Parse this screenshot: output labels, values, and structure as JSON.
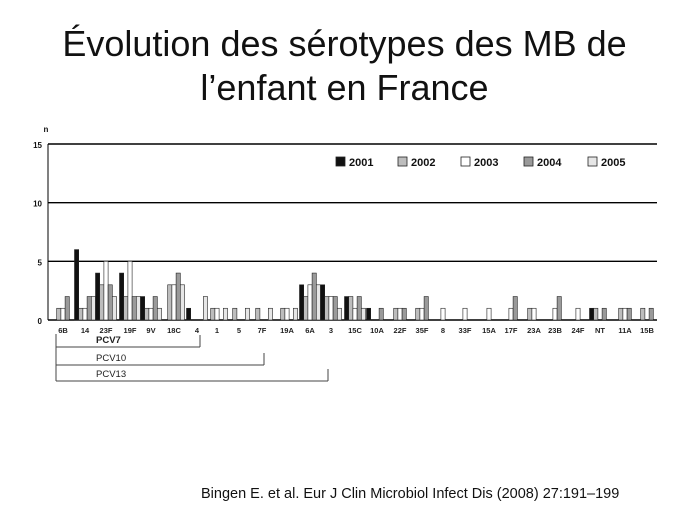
{
  "slide": {
    "title_line1": "Évolution des sérotypes des MB de",
    "title_line2": "l’enfant en France",
    "citation": "Bingen E. et al. Eur J Clin Microbiol Infect Dis (2008) 27:191–199"
  },
  "chart_data": {
    "type": "bar",
    "title": "",
    "ylabel": "n",
    "ylim": [
      0,
      15
    ],
    "yticks": [
      0,
      5,
      10,
      15
    ],
    "grid": "horizontal",
    "legend": "top-right",
    "series": [
      {
        "name": "2001",
        "color": "#111111",
        "values": [
          0,
          6,
          4,
          4,
          2,
          0,
          1,
          0,
          0,
          0,
          0,
          3,
          3,
          2,
          1,
          0,
          0,
          0,
          0,
          0,
          0,
          0,
          0,
          0,
          1,
          0,
          0
        ]
      },
      {
        "name": "2002",
        "color": "#bdbdbd",
        "values": [
          1,
          1,
          3,
          2,
          1,
          3,
          0,
          1,
          1,
          1,
          1,
          2,
          2,
          2,
          0,
          1,
          1,
          0,
          0,
          0,
          0,
          1,
          0,
          0,
          1,
          1,
          1
        ]
      },
      {
        "name": "2003",
        "color": "#ffffff",
        "values": [
          1,
          1,
          5,
          5,
          1,
          3,
          0,
          1,
          0,
          0,
          1,
          3,
          2,
          1,
          0,
          1,
          1,
          1,
          1,
          1,
          1,
          1,
          1,
          1,
          0,
          1,
          0
        ]
      },
      {
        "name": "2004",
        "color": "#9a9a9a",
        "values": [
          2,
          2,
          3,
          2,
          2,
          4,
          0,
          0,
          0,
          0,
          0,
          4,
          2,
          2,
          1,
          1,
          2,
          0,
          0,
          0,
          2,
          0,
          2,
          0,
          1,
          1,
          1
        ]
      },
      {
        "name": "2005",
        "color": "#e6e6e6",
        "values": [
          0,
          2,
          2,
          2,
          1,
          3,
          2,
          1,
          1,
          1,
          1,
          3,
          1,
          1,
          0,
          0,
          0,
          0,
          0,
          0,
          0,
          0,
          0,
          0,
          0,
          0,
          0
        ]
      }
    ],
    "categories": [
      "6B",
      "14",
      "23F",
      "19F",
      "9V",
      "18C",
      "4",
      "1",
      "5",
      "7F",
      "19A",
      "6A",
      "3",
      "15C",
      "10A",
      "22F",
      "35F",
      "8",
      "33F",
      "15A",
      "17F",
      "23A",
      "23B",
      "24F",
      "NT",
      "11A",
      "15B"
    ],
    "annotations": [
      {
        "label": "PCV7",
        "covers": [
          "6B",
          "14",
          "23F",
          "19F",
          "9V",
          "18C",
          "4"
        ]
      },
      {
        "label": "PCV10",
        "covers": [
          "6B",
          "14",
          "23F",
          "19F",
          "9V",
          "18C",
          "4",
          "1",
          "5",
          "7F"
        ]
      },
      {
        "label": "PCV13",
        "covers": [
          "6B",
          "14",
          "23F",
          "19F",
          "9V",
          "18C",
          "4",
          "1",
          "5",
          "7F",
          "19A",
          "6A",
          "3"
        ]
      }
    ]
  }
}
